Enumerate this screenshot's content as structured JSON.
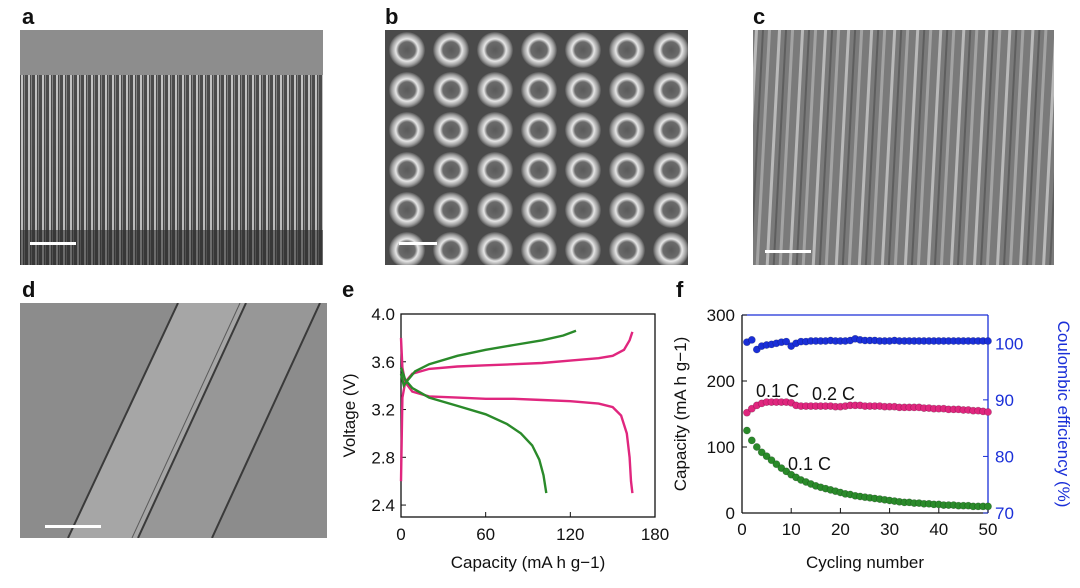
{
  "figure": {
    "panel_labels": [
      "a",
      "b",
      "c",
      "d",
      "e",
      "f"
    ]
  },
  "chart_data": [
    {
      "panel": "e",
      "type": "line",
      "xlabel": "Capacity (mA h g−1)",
      "ylabel": "Voltage (V)",
      "xlim": [
        0,
        180
      ],
      "ylim": [
        2.3,
        4.0
      ],
      "xticks": [
        "0",
        "60",
        "120",
        "180"
      ],
      "yticks": [
        "2.4",
        "2.8",
        "3.2",
        "3.6",
        "4.0"
      ],
      "grid": false,
      "series": [
        {
          "color": "#e0267e",
          "role": "charge",
          "points": [
            [
              0,
              2.6
            ],
            [
              1,
              3.3
            ],
            [
              3,
              3.43
            ],
            [
              8,
              3.5
            ],
            [
              20,
              3.54
            ],
            [
              40,
              3.56
            ],
            [
              60,
              3.57
            ],
            [
              80,
              3.58
            ],
            [
              100,
              3.59
            ],
            [
              120,
              3.61
            ],
            [
              140,
              3.63
            ],
            [
              150,
              3.65
            ],
            [
              158,
              3.7
            ],
            [
              162,
              3.78
            ],
            [
              164,
              3.85
            ]
          ]
        },
        {
          "color": "#e0267e",
          "role": "discharge",
          "points": [
            [
              0,
              3.8
            ],
            [
              1,
              3.55
            ],
            [
              3,
              3.43
            ],
            [
              8,
              3.35
            ],
            [
              20,
              3.31
            ],
            [
              40,
              3.3
            ],
            [
              60,
              3.29
            ],
            [
              80,
              3.29
            ],
            [
              100,
              3.28
            ],
            [
              120,
              3.27
            ],
            [
              140,
              3.25
            ],
            [
              150,
              3.22
            ],
            [
              156,
              3.15
            ],
            [
              160,
              3.0
            ],
            [
              162,
              2.8
            ],
            [
              163,
              2.6
            ],
            [
              164,
              2.5
            ]
          ]
        },
        {
          "color": "#2a8a2a",
          "role": "charge",
          "points": [
            [
              0,
              3.5
            ],
            [
              2,
              3.4
            ],
            [
              5,
              3.45
            ],
            [
              10,
              3.52
            ],
            [
              20,
              3.58
            ],
            [
              40,
              3.65
            ],
            [
              60,
              3.7
            ],
            [
              80,
              3.74
            ],
            [
              100,
              3.78
            ],
            [
              115,
              3.82
            ],
            [
              124,
              3.86
            ]
          ]
        },
        {
          "color": "#2a8a2a",
          "role": "discharge",
          "points": [
            [
              0,
              3.55
            ],
            [
              3,
              3.45
            ],
            [
              8,
              3.38
            ],
            [
              20,
              3.3
            ],
            [
              40,
              3.23
            ],
            [
              60,
              3.16
            ],
            [
              75,
              3.08
            ],
            [
              85,
              3.0
            ],
            [
              93,
              2.9
            ],
            [
              98,
              2.78
            ],
            [
              101,
              2.65
            ],
            [
              103,
              2.5
            ]
          ]
        }
      ]
    },
    {
      "panel": "f",
      "type": "scatter",
      "xlabel": "Cycling number",
      "ylabel": "Capacity (mA h g−1)",
      "y2label": "Coulombic efficiency (%)",
      "xlim": [
        0,
        50
      ],
      "ylim": [
        0,
        300
      ],
      "y2lim": [
        70,
        105
      ],
      "xticks": [
        "0",
        "10",
        "20",
        "30",
        "40",
        "50"
      ],
      "yticks": [
        "0",
        "100",
        "200",
        "300"
      ],
      "y2ticks": [
        "70",
        "80",
        "90",
        "100"
      ],
      "annotations": [
        "0.1 C",
        "0.2 C",
        "0.1 C"
      ],
      "series": [
        {
          "color": "#e0267e",
          "axis": "left",
          "x": [
            1,
            2,
            3,
            4,
            5,
            6,
            7,
            8,
            9,
            10,
            11,
            12,
            13,
            14,
            15,
            16,
            17,
            18,
            19,
            20,
            21,
            22,
            23,
            24,
            25,
            26,
            27,
            28,
            29,
            30,
            31,
            32,
            33,
            34,
            35,
            36,
            37,
            38,
            39,
            40,
            41,
            42,
            43,
            44,
            45,
            46,
            47,
            48,
            49,
            50
          ],
          "y": [
            152,
            158,
            163,
            166,
            168,
            168,
            168,
            168,
            168,
            167,
            163,
            162,
            162,
            162,
            162,
            162,
            162,
            162,
            161,
            161,
            162,
            163,
            163,
            163,
            162,
            162,
            162,
            162,
            161,
            161,
            161,
            160,
            160,
            160,
            160,
            160,
            159,
            159,
            158,
            158,
            158,
            157,
            157,
            157,
            156,
            156,
            155,
            155,
            154,
            153
          ]
        },
        {
          "color": "#2a8a2a",
          "axis": "left",
          "x": [
            1,
            2,
            3,
            4,
            5,
            6,
            7,
            8,
            9,
            10,
            11,
            12,
            13,
            14,
            15,
            16,
            17,
            18,
            19,
            20,
            21,
            22,
            23,
            24,
            25,
            26,
            27,
            28,
            29,
            30,
            31,
            32,
            33,
            34,
            35,
            36,
            37,
            38,
            39,
            40,
            41,
            42,
            43,
            44,
            45,
            46,
            47,
            48,
            49,
            50
          ],
          "y": [
            125,
            110,
            100,
            92,
            86,
            80,
            74,
            68,
            63,
            58,
            54,
            50,
            47,
            44,
            41,
            39,
            37,
            35,
            33,
            31,
            29,
            28,
            26,
            25,
            24,
            23,
            22,
            21,
            20,
            19,
            18,
            17,
            16,
            16,
            15,
            15,
            14,
            14,
            13,
            13,
            12,
            12,
            12,
            11,
            11,
            11,
            10,
            10,
            10,
            10
          ]
        },
        {
          "color": "#1a2fd8",
          "axis": "right",
          "x": [
            1,
            2,
            3,
            4,
            5,
            6,
            7,
            8,
            9,
            10,
            11,
            12,
            13,
            14,
            15,
            16,
            17,
            18,
            19,
            20,
            21,
            22,
            23,
            24,
            25,
            26,
            27,
            28,
            29,
            30,
            31,
            32,
            33,
            34,
            35,
            36,
            37,
            38,
            39,
            40,
            41,
            42,
            43,
            44,
            45,
            46,
            47,
            48,
            49,
            50
          ],
          "y": [
            100.2,
            100.6,
            98.9,
            99.5,
            99.7,
            99.8,
            100.0,
            100.2,
            100.3,
            99.5,
            100.0,
            100.3,
            100.3,
            100.4,
            100.4,
            100.4,
            100.4,
            100.5,
            100.4,
            100.4,
            100.4,
            100.5,
            100.8,
            100.6,
            100.5,
            100.5,
            100.5,
            100.4,
            100.4,
            100.4,
            100.5,
            100.4,
            100.4,
            100.4,
            100.4,
            100.4,
            100.4,
            100.4,
            100.4,
            100.4,
            100.4,
            100.4,
            100.4,
            100.4,
            100.4,
            100.4,
            100.4,
            100.4,
            100.4,
            100.4
          ]
        }
      ]
    }
  ]
}
